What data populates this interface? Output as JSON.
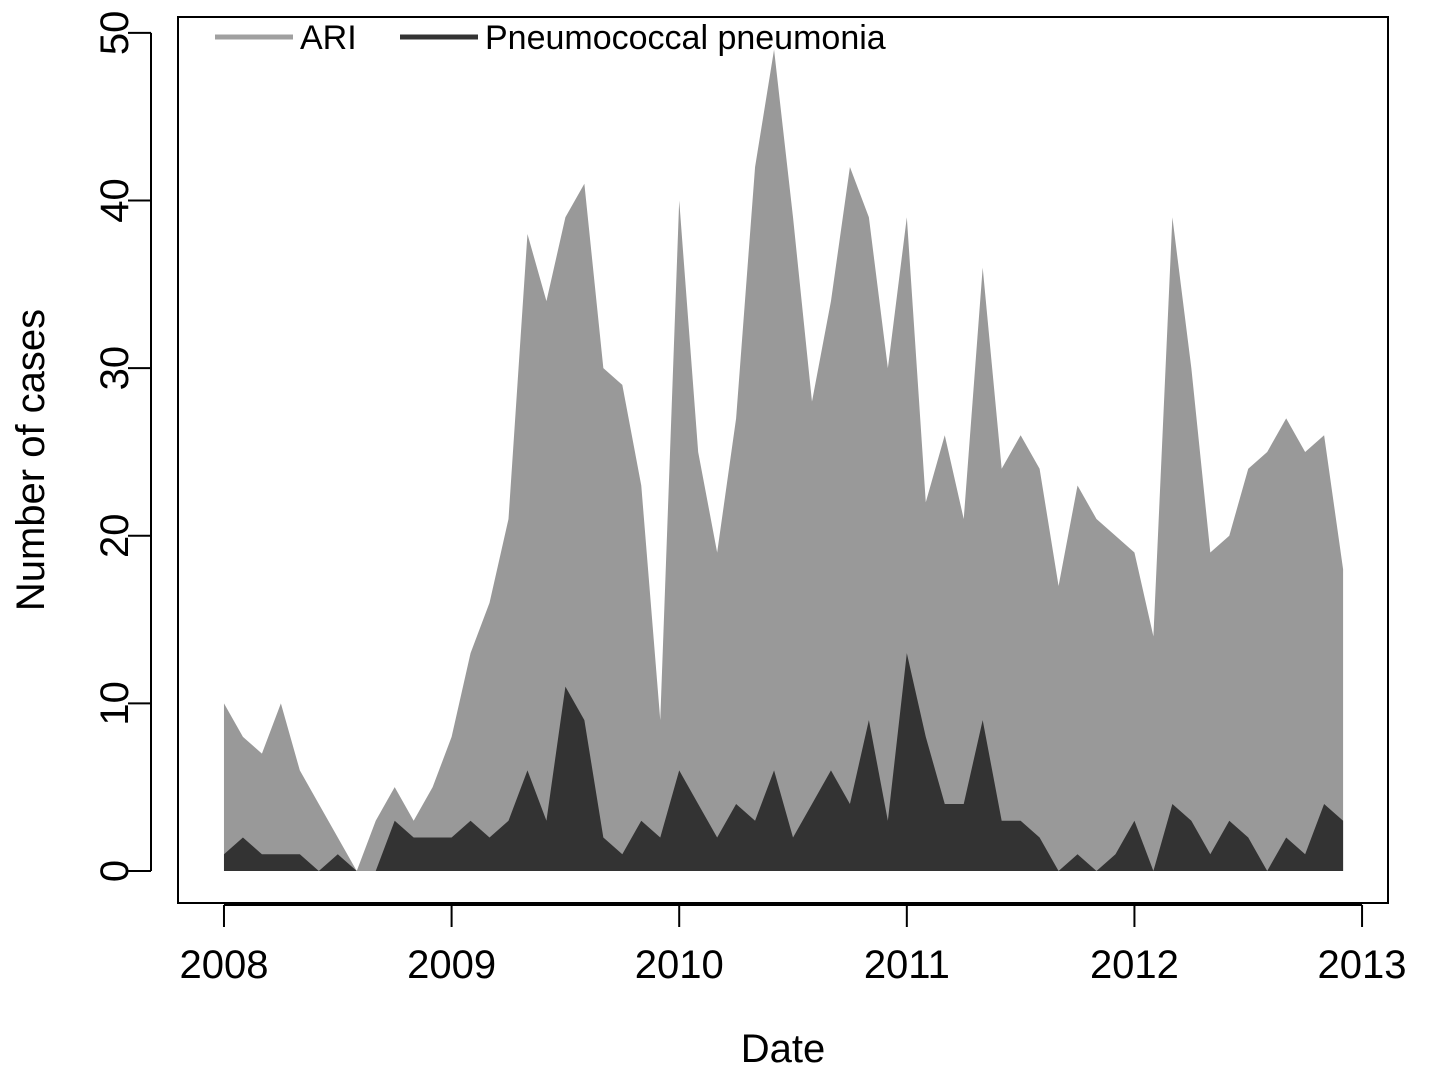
{
  "chart_data": {
    "type": "area",
    "x_label": "Date",
    "y_label": "Number of cases",
    "x": [
      2008,
      2008.0833,
      2008.1667,
      2008.25,
      2008.3333,
      2008.4167,
      2008.5,
      2008.5833,
      2008.6667,
      2008.75,
      2008.8333,
      2008.9167,
      2009,
      2009.0833,
      2009.1667,
      2009.25,
      2009.3333,
      2009.4167,
      2009.5,
      2009.5833,
      2009.6667,
      2009.75,
      2009.8333,
      2009.9167,
      2010,
      2010.0833,
      2010.1667,
      2010.25,
      2010.3333,
      2010.4167,
      2010.5,
      2010.5833,
      2010.6667,
      2010.75,
      2010.8333,
      2010.9167,
      2011,
      2011.0833,
      2011.1667,
      2011.25,
      2011.3333,
      2011.4167,
      2011.5,
      2011.5833,
      2011.6667,
      2011.75,
      2011.8333,
      2011.9167,
      2012,
      2012.0833,
      2012.1667,
      2012.25,
      2012.3333,
      2012.4167,
      2012.5,
      2012.5833,
      2012.6667,
      2012.75,
      2012.8333,
      2012.9167
    ],
    "series": [
      {
        "name": "ARI",
        "color": "#999999",
        "line_color": "#a0a0a0",
        "values": [
          10,
          8,
          7,
          10,
          6,
          4,
          2,
          0,
          3,
          5,
          3,
          5,
          8,
          13,
          16,
          21,
          38,
          34,
          39,
          41,
          30,
          29,
          23,
          9,
          40,
          25,
          19,
          27,
          42,
          49,
          39,
          28,
          34,
          42,
          39,
          30,
          39,
          22,
          26,
          21,
          36,
          24,
          26,
          24,
          17,
          23,
          21,
          20,
          19,
          14,
          39,
          30,
          19,
          20,
          24,
          25,
          27,
          25,
          26,
          18
        ]
      },
      {
        "name": "Pneumococcal pneumonia",
        "color": "#333333",
        "line_color": "#333333",
        "values": [
          1,
          2,
          1,
          1,
          1,
          0,
          1,
          0,
          0,
          3,
          2,
          2,
          2,
          3,
          2,
          3,
          6,
          3,
          11,
          9,
          2,
          1,
          3,
          2,
          6,
          4,
          2,
          4,
          3,
          6,
          2,
          4,
          6,
          4,
          9,
          3,
          13,
          8,
          4,
          4,
          9,
          3,
          3,
          2,
          0,
          1,
          0,
          1,
          3,
          0,
          4,
          3,
          1,
          3,
          2,
          0,
          2,
          1,
          4,
          3
        ]
      }
    ],
    "xlim": [
      2007.798,
      2013.114
    ],
    "xticks": [
      2008,
      2009,
      2010,
      2011,
      2012,
      2013
    ],
    "ylim": [
      -1.91,
      50.95
    ],
    "yticks": [
      0,
      10,
      20,
      30,
      40,
      50
    ],
    "legend": "top-left",
    "grid": false
  }
}
